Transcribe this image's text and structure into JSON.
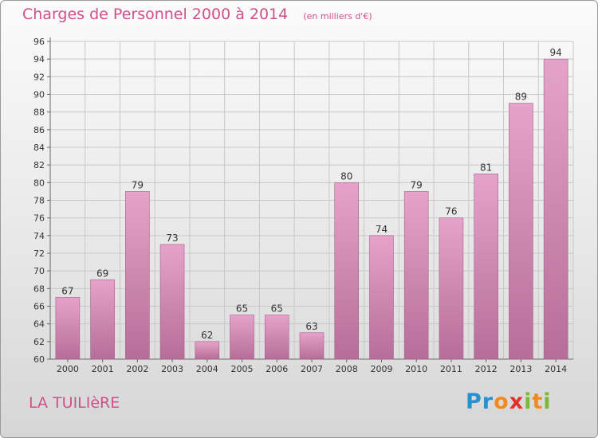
{
  "title": "Charges de Personnel 2000 à 2014",
  "subtitle": "(en milliers d'€)",
  "town": "LA TUILIèRE",
  "logo": {
    "text": "Proxiti",
    "letters": [
      {
        "ch": "P",
        "color": "#2a8fd0"
      },
      {
        "ch": "r",
        "color": "#2a8fd0"
      },
      {
        "ch": "o",
        "color": "#f08a1c"
      },
      {
        "ch": "x",
        "color": "#e0302a"
      },
      {
        "ch": "i",
        "color": "#7ab83a"
      },
      {
        "ch": "t",
        "color": "#f08a1c"
      },
      {
        "ch": "i",
        "color": "#7ab83a"
      }
    ]
  },
  "colors": {
    "bar_top": "#e6a3c9",
    "bar_bottom": "#b56e98",
    "bar_edge": "#a65f8a",
    "accent": "#d0508a",
    "grid": "#c8c8c8",
    "text": "#333333"
  },
  "chart_data": {
    "type": "bar",
    "categories": [
      "2000",
      "2001",
      "2002",
      "2003",
      "2004",
      "2005",
      "2006",
      "2007",
      "2008",
      "2009",
      "2010",
      "2011",
      "2012",
      "2013",
      "2014"
    ],
    "values": [
      67,
      69,
      79,
      73,
      62,
      65,
      65,
      63,
      80,
      74,
      79,
      76,
      81,
      89,
      94
    ],
    "data_labels": [
      "67",
      "69",
      "79",
      "73",
      "62",
      "65",
      "65",
      "63",
      "80",
      "74",
      "79",
      "76",
      "81",
      "89",
      "94"
    ],
    "ylim": [
      60,
      96
    ],
    "yticks": [
      60,
      62,
      64,
      66,
      68,
      70,
      72,
      74,
      76,
      78,
      80,
      82,
      84,
      86,
      88,
      90,
      92,
      94,
      96
    ],
    "grid": true,
    "xlabel": "",
    "ylabel": ""
  }
}
